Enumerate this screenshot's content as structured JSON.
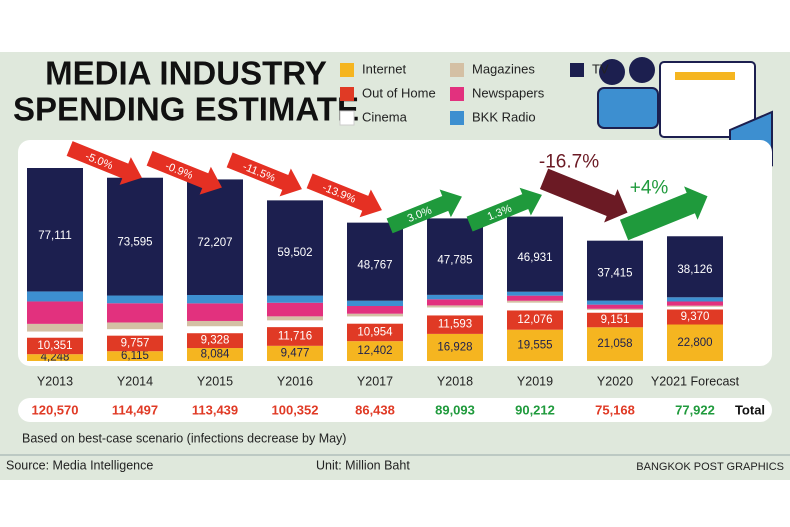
{
  "chart_data": {
    "type": "bar",
    "stacked": true,
    "title": [
      "MEDIA INDUSTRY",
      "SPENDING ESTIMATE"
    ],
    "categories": [
      "Y2013",
      "Y2014",
      "Y2015",
      "Y2016",
      "Y2017",
      "Y2018",
      "Y2019",
      "Y2020",
      "Y2021 Forecast"
    ],
    "series": [
      {
        "name": "Internet",
        "color": "#f5b520",
        "label_color": "#1c1f4f",
        "values": [
          4248,
          6115,
          8084,
          9477,
          12402,
          16928,
          19555,
          21058,
          22800
        ],
        "value_labels": [
          "4,248",
          "6,115",
          "8,084",
          "9,477",
          "12,402",
          "16,928",
          "19,555",
          "21,058",
          "22,800"
        ]
      },
      {
        "name": "Out of Home",
        "color": "#e03a25",
        "label_color": "#ffffff",
        "values": [
          10351,
          9757,
          9328,
          11716,
          10954,
          11593,
          12076,
          9151,
          9370
        ],
        "value_labels": [
          "10,351",
          "9,757",
          "9,328",
          "11,716",
          "10,954",
          "11,593",
          "12,076",
          "9,151",
          "9,370"
        ]
      },
      {
        "name": "Cinema",
        "color": "#ffffff",
        "values": [
          3800,
          4000,
          4300,
          4200,
          4500,
          4900,
          4800,
          1600,
          1700
        ]
      },
      {
        "name": "Magazines",
        "color": "#d4c0a4",
        "values": [
          4800,
          4200,
          3300,
          2500,
          1700,
          1300,
          1200,
          800,
          700
        ]
      },
      {
        "name": "Newspapers",
        "color": "#e2317e",
        "values": [
          14000,
          12000,
          11000,
          8500,
          4800,
          3800,
          3200,
          2600,
          2600
        ]
      },
      {
        "name": "BKK Radio",
        "color": "#3d8fd0",
        "values": [
          6260,
          4830,
          5220,
          4457,
          3315,
          2787,
          2450,
          2544,
          2626
        ]
      },
      {
        "name": "TV",
        "color": "#1c1f4f",
        "label_color": "#ffffff",
        "values": [
          77111,
          73595,
          72207,
          59502,
          48767,
          47785,
          46931,
          37415,
          38126
        ],
        "value_labels": [
          "77,111",
          "73,595",
          "72,207",
          "59,502",
          "48,767",
          "47,785",
          "46,931",
          "37,415",
          "38,126"
        ]
      }
    ],
    "totals": {
      "label": "Total",
      "values": [
        120570,
        114497,
        113439,
        100352,
        86438,
        89093,
        90212,
        75168,
        77922
      ],
      "value_labels": [
        "120,570",
        "114,497",
        "113,439",
        "100,352",
        "86,438",
        "89,093",
        "90,212",
        "75,168",
        "77,922"
      ],
      "colors": [
        "#e03a25",
        "#e03a25",
        "#e03a25",
        "#e03a25",
        "#e03a25",
        "#1f9a3c",
        "#1f9a3c",
        "#e03a25",
        "#1f9a3c"
      ]
    },
    "changes": [
      {
        "value": -5.0,
        "label": "-5.0%",
        "color": "#e53023"
      },
      {
        "value": -0.9,
        "label": "-0.9%",
        "color": "#e53023"
      },
      {
        "value": -11.5,
        "label": "-11.5%",
        "color": "#e53023"
      },
      {
        "value": -13.9,
        "label": "-13.9%",
        "color": "#e53023"
      },
      {
        "value": 3.0,
        "label": "3.0%",
        "color": "#1f9a3c"
      },
      {
        "value": 1.3,
        "label": "1.3%",
        "color": "#1f9a3c"
      },
      {
        "value": -16.7,
        "label": "-16.7%",
        "color": "#6b1a24"
      },
      {
        "value": 4,
        "label": "+4%",
        "color": "#1f9a3c"
      }
    ],
    "note": "Based on best-case scenario (infections decrease by May)",
    "source": "Source: Media Intelligence",
    "unit": "Unit: Million Baht",
    "credit": "BANGKOK POST GRAPHICS"
  }
}
